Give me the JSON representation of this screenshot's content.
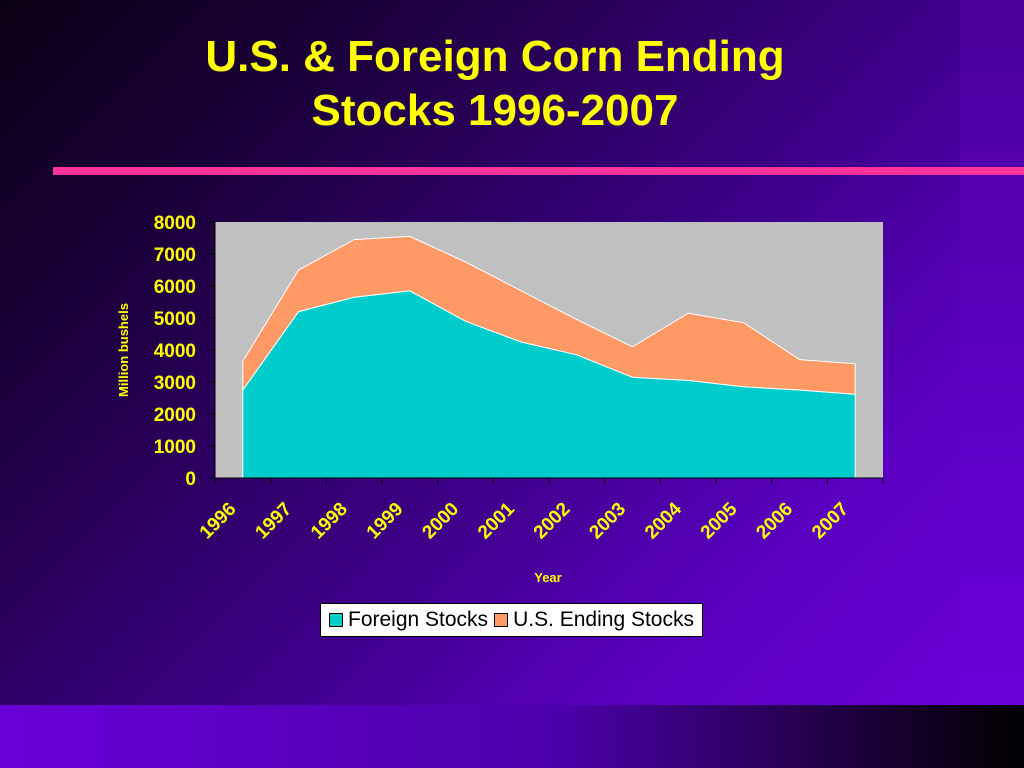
{
  "slide": {
    "title_line1": "U.S. & Foreign Corn Ending",
    "title_line2": "Stocks  1996-2007",
    "title_color": "#ffff00",
    "rule_color": "#ff3399"
  },
  "chart_data": {
    "type": "area",
    "stacked": true,
    "categories": [
      "1996",
      "1997",
      "1998",
      "1999",
      "2000",
      "2001",
      "2002",
      "2003",
      "2004",
      "2005",
      "2006",
      "2007"
    ],
    "series": [
      {
        "name": "Foreign Stocks",
        "color": "#00cccc",
        "values": [
          2750,
          5200,
          5650,
          5850,
          4900,
          4250,
          3850,
          3150,
          3050,
          2850,
          2750,
          2620
        ]
      },
      {
        "name": "U.S. Ending Stocks",
        "color": "#ff9966",
        "values": [
          900,
          1300,
          1800,
          1700,
          1850,
          1600,
          1100,
          950,
          2100,
          2000,
          950,
          950
        ]
      }
    ],
    "xlabel": "Year",
    "ylabel": "Million bushels",
    "ylim": [
      0,
      8000
    ],
    "yticks": [
      "0",
      "1000",
      "2000",
      "3000",
      "4000",
      "5000",
      "6000",
      "7000",
      "8000"
    ],
    "plot_background": "#c0c0c0",
    "legend_position": "bottom",
    "grid": false
  }
}
